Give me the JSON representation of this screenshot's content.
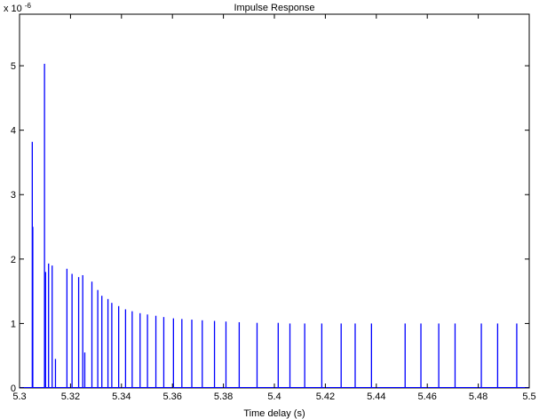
{
  "chart_data": {
    "type": "line",
    "title": "Impulse Response",
    "xlabel": "Time delay (s)",
    "ylabel": "",
    "y_multiplier": "x 10",
    "y_multiplier_exponent": "-6",
    "xlim": [
      5.3,
      5.5
    ],
    "ylim": [
      0,
      5.8
    ],
    "xticks": [
      5.3,
      5.32,
      5.34,
      5.36,
      5.38,
      5.4,
      5.42,
      5.44,
      5.46,
      5.48,
      5.5
    ],
    "xtick_labels": [
      "5.3",
      "5.32",
      "5.34",
      "5.36",
      "5.38",
      "5.4",
      "5.42",
      "5.44",
      "5.46",
      "5.48",
      "5.5"
    ],
    "yticks": [
      0,
      1,
      2,
      3,
      4,
      5
    ],
    "ytick_labels": [
      "0",
      "1",
      "2",
      "3",
      "4",
      "5"
    ],
    "grid": false,
    "line_color": "#0000ff",
    "series": [
      {
        "x": [
          5.305,
          5.3052,
          5.3098,
          5.3102,
          5.3114,
          5.3128,
          5.3141,
          5.3186,
          5.3206,
          5.3232,
          5.3248,
          5.3256,
          5.3284,
          5.3307,
          5.3323,
          5.3347,
          5.3362,
          5.3389,
          5.3416,
          5.3442,
          5.3473,
          5.3502,
          5.3535,
          5.3566,
          5.3604,
          5.3637,
          5.3676,
          5.3717,
          5.3765,
          5.381,
          5.3862,
          5.3932,
          5.4015,
          5.4061,
          5.4119,
          5.4186,
          5.4262,
          5.4317,
          5.4381,
          5.4513,
          5.4575,
          5.4645,
          5.4709,
          5.4812,
          5.4876,
          5.4951
        ],
        "y": [
          3.82,
          2.5,
          5.03,
          1.8,
          1.93,
          1.9,
          0.45,
          1.85,
          1.77,
          1.72,
          1.75,
          0.55,
          1.65,
          1.52,
          1.43,
          1.38,
          1.32,
          1.27,
          1.22,
          1.19,
          1.16,
          1.14,
          1.12,
          1.1,
          1.08,
          1.07,
          1.06,
          1.05,
          1.04,
          1.03,
          1.02,
          1.01,
          1.01,
          1.0,
          1.0,
          1.0,
          1.0,
          1.0,
          1.0,
          1.0,
          1.0,
          1.0,
          1.0,
          1.0,
          1.0,
          1.0
        ]
      }
    ]
  }
}
